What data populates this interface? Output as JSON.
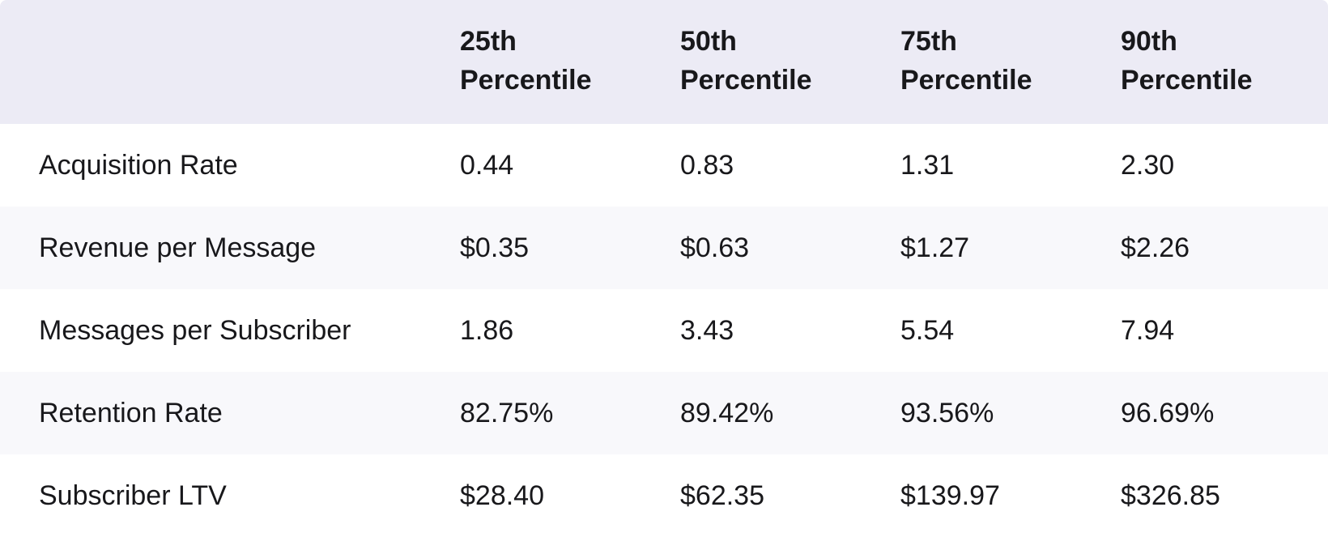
{
  "table": {
    "column_headers": [
      "25th Percentile",
      "50th Percentile",
      "75th Percentile",
      "90th Percentile"
    ],
    "rows": [
      {
        "label": "Acquisition Rate",
        "values": [
          "0.44",
          "0.83",
          "1.31",
          "2.30"
        ]
      },
      {
        "label": "Revenue per Message",
        "values": [
          "$0.35",
          "$0.63",
          "$1.27",
          "$2.26"
        ]
      },
      {
        "label": "Messages per Subscriber",
        "values": [
          "1.86",
          "3.43",
          "5.54",
          "7.94"
        ]
      },
      {
        "label": "Retention Rate",
        "values": [
          "82.75%",
          "89.42%",
          "93.56%",
          "96.69%"
        ]
      },
      {
        "label": "Subscriber LTV",
        "values": [
          "$28.40",
          "$62.35",
          "$139.97",
          "$326.85"
        ]
      }
    ]
  },
  "colors": {
    "header_bg": "#ECEBF5",
    "row_bg": "#FFFFFF",
    "row_alt_bg": "#F8F8FB",
    "text": "#18181B"
  },
  "chart_data": {
    "type": "table",
    "columns": [
      "",
      "25th Percentile",
      "50th Percentile",
      "75th Percentile",
      "90th Percentile"
    ],
    "rows": [
      [
        "Acquisition Rate",
        "0.44",
        "0.83",
        "1.31",
        "2.30"
      ],
      [
        "Revenue per Message",
        "$0.35",
        "$0.63",
        "$1.27",
        "$2.26"
      ],
      [
        "Messages per Subscriber",
        "1.86",
        "3.43",
        "5.54",
        "7.94"
      ],
      [
        "Retention Rate",
        "82.75%",
        "89.42%",
        "93.56%",
        "96.69%"
      ],
      [
        "Subscriber LTV",
        "$28.40",
        "$62.35",
        "$139.97",
        "$326.85"
      ]
    ]
  }
}
